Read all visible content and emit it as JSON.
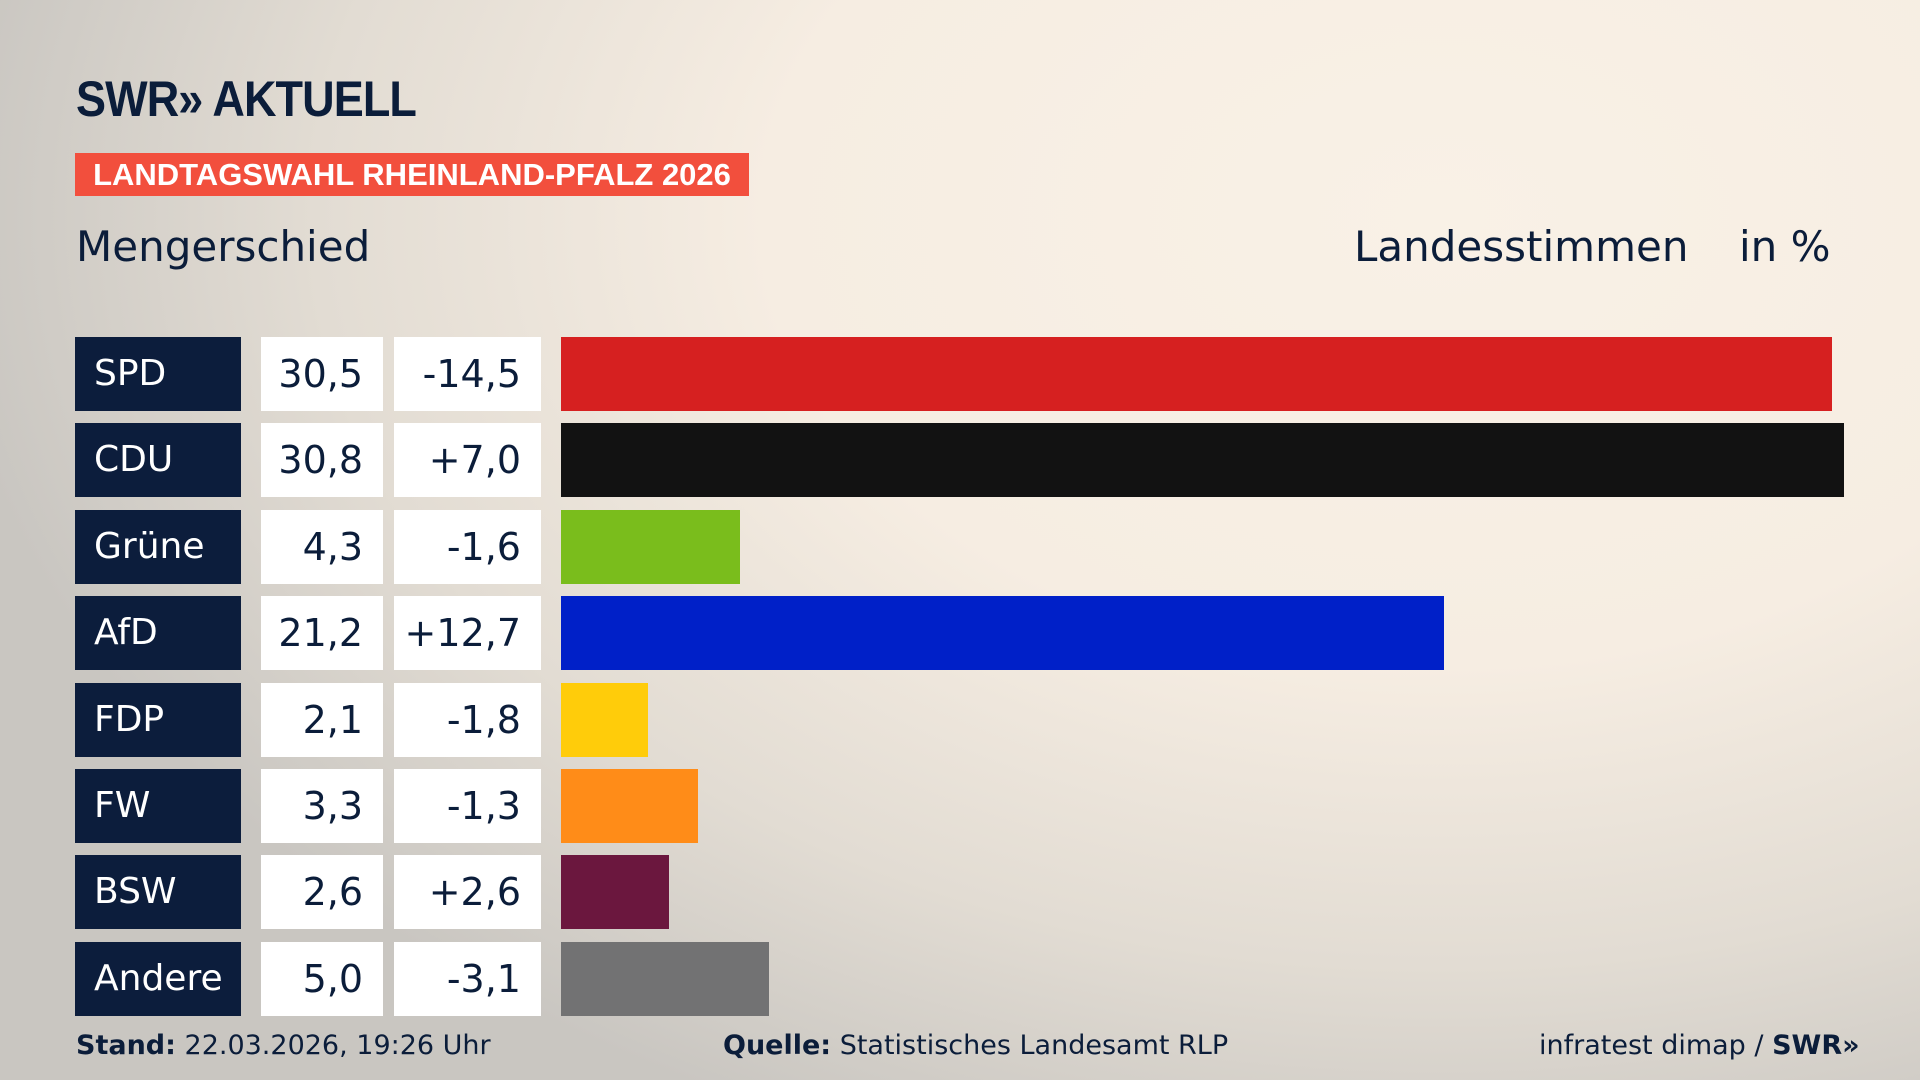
{
  "logo": "SWR» AKTUELL",
  "banner": "LANDTAGSWAHL RHEINLAND-PFALZ 2026",
  "place": "Mengerschied",
  "header": {
    "label": "Landesstimmen",
    "unit": "in %"
  },
  "chart_data": {
    "type": "bar",
    "orientation": "horizontal",
    "categories": [
      "SPD",
      "CDU",
      "Grüne",
      "AfD",
      "FDP",
      "FW",
      "BSW",
      "Andere"
    ],
    "values": [
      30.5,
      30.8,
      4.3,
      21.2,
      2.1,
      3.3,
      2.6,
      5.0
    ],
    "values_label": [
      "30,5",
      "30,8",
      "4,3",
      "21,2",
      "2,1",
      "3,3",
      "2,6",
      "5,0"
    ],
    "changes_label": [
      "-14,5",
      "+7,0",
      "-1,6",
      "+12,7",
      "-1,8",
      "-1,3",
      "+2,6",
      "-3,1"
    ],
    "colors": [
      "#d62020",
      "#121212",
      "#7abd1c",
      "#0020c8",
      "#ffcc0a",
      "#ff8c18",
      "#6b173e",
      "#727273"
    ],
    "xlim": [
      0,
      30.8
    ]
  },
  "footer": {
    "stand_label": "Stand:",
    "stand": "22.03.2026, 19:26 Uhr",
    "source_label": "Quelle:",
    "source": "Statistisches Landesamt RLP",
    "credit": "infratest dimap /",
    "credit_logo": "SWR»"
  }
}
